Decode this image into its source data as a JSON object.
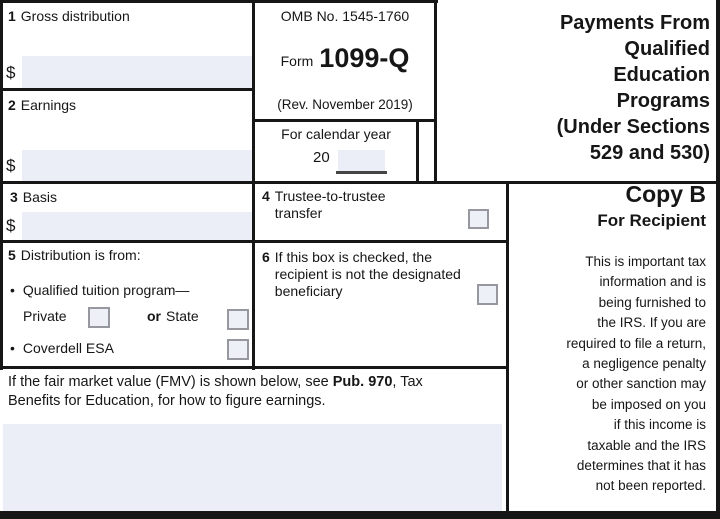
{
  "header": {
    "omb_number": "OMB No. 1545-1760",
    "form_word": "Form",
    "form_number": "1099-Q",
    "revision": "(Rev. November 2019)",
    "calendar_year_label": "For calendar year",
    "calendar_year_prefix": "20",
    "title_lines": [
      "Payments From",
      "Qualified",
      "Education",
      "Programs",
      "(Under Sections",
      "529 and 530)"
    ]
  },
  "boxes": {
    "box1": {
      "number": "1",
      "label": "Gross distribution",
      "currency": "$"
    },
    "box2": {
      "number": "2",
      "label": "Earnings",
      "currency": "$"
    },
    "box3": {
      "number": "3",
      "label": "Basis",
      "currency": "$"
    },
    "box4": {
      "number": "4",
      "label": "Trustee-to-trustee transfer"
    },
    "box5": {
      "number": "5",
      "label": "Distribution is from:",
      "bullet": "•",
      "option1": "Qualified tuition program—",
      "private_label": "Private",
      "or_label": "or",
      "state_label": "State",
      "option2": "Coverdell ESA"
    },
    "box6": {
      "number": "6",
      "label": "If this box is checked, the recipient is not the designated beneficiary"
    }
  },
  "fmv_note": {
    "part1": "If the fair market value (FMV) is shown below, see ",
    "bold": "Pub. 970",
    "part2": ", Tax Benefits for Education, for how to figure earnings."
  },
  "recipient_copy": {
    "copy_label": "Copy B",
    "for_label": "For Recipient",
    "notice_lines": [
      "This is important tax",
      "information and is",
      "being furnished to",
      "the IRS. If you are",
      "required to file a return,",
      "a negligence penalty",
      "or other sanction may",
      "be imposed on you",
      "if this income is",
      "taxable and the IRS",
      "determines that it has",
      "not been reported."
    ]
  },
  "colors": {
    "field_fill": "#eceef7",
    "checkbox_fill": "#eef0f8",
    "checkbox_border": "#97979f",
    "ink": "#161616"
  }
}
